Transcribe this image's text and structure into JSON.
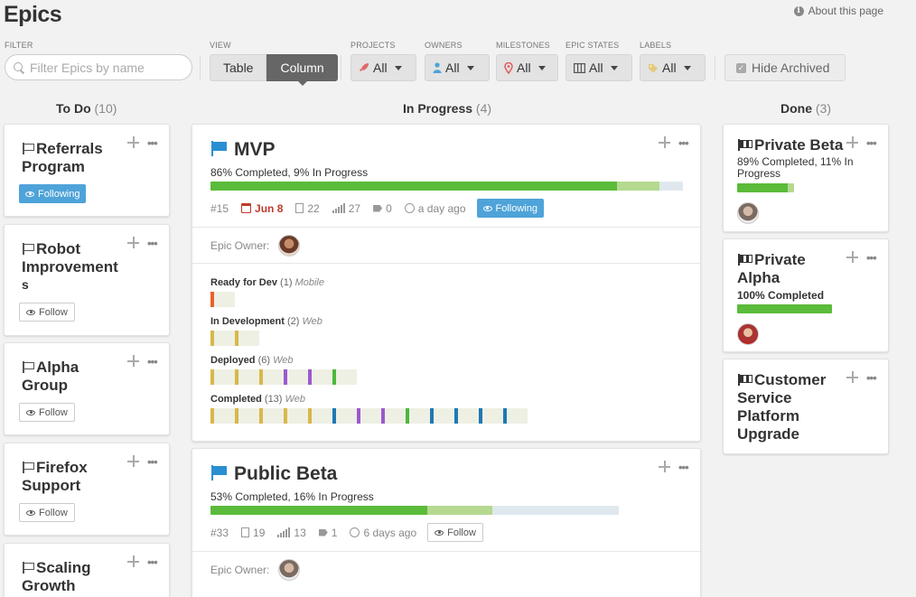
{
  "header": {
    "title": "Epics",
    "about_label": "About this page",
    "info_glyph": "i"
  },
  "filters": {
    "filter_label": "FILTER",
    "search_placeholder": "Filter Epics by name",
    "view_label": "VIEW",
    "view_options": [
      "Table",
      "Column"
    ],
    "view_selected": "Column",
    "projects": {
      "label": "PROJECTS",
      "value": "All",
      "icon": "rocket-icon"
    },
    "owners": {
      "label": "OWNERS",
      "value": "All",
      "icon": "person-icon"
    },
    "milestones": {
      "label": "MILESTONES",
      "value": "All",
      "icon": "map-pin-icon"
    },
    "epic_states": {
      "label": "EPIC STATES",
      "value": "All",
      "icon": "columns-icon"
    },
    "labels": {
      "label": "LABELS",
      "value": "All",
      "icon": "tag-icon"
    },
    "hide_archived": {
      "label": "Hide Archived",
      "checked": true,
      "check_glyph": "✓"
    }
  },
  "columns": {
    "todo": {
      "name": "To Do",
      "count": "(10)"
    },
    "in_progress": {
      "name": "In Progress",
      "count": "(4)"
    },
    "done": {
      "name": "Done",
      "count": "(3)"
    }
  },
  "todo_cards": [
    {
      "title_l1": "Referrals",
      "title_l2": "Program",
      "title_l3": "",
      "button": "Following"
    },
    {
      "title_l1": "Robot",
      "title_l2": "Improvement",
      "title_l3": "s",
      "button": "Follow"
    },
    {
      "title_l1": "Alpha",
      "title_l2": "Group",
      "title_l3": "",
      "button": "Follow"
    },
    {
      "title_l1": "Firefox",
      "title_l2": "Support",
      "title_l3": "",
      "button": "Follow"
    },
    {
      "title_l1": "Scaling",
      "title_l2": "Growth",
      "title_l3": "",
      "button": ""
    }
  ],
  "mvp": {
    "title": "MVP",
    "progress_text": "86% Completed, 9% In Progress",
    "completed_pct": 86,
    "in_progress_pct": 9,
    "id": "#15",
    "due": "Jun 8",
    "stories": "22",
    "points": "27",
    "labels": "0",
    "updated": "a day ago",
    "follow": "Following",
    "owner_label": "Epic Owner:",
    "states": [
      {
        "name": "Ready for Dev",
        "count": "(1)",
        "project": "Mobile",
        "colors": [
          "#e8612c"
        ]
      },
      {
        "name": "In Development",
        "count": "(2)",
        "project": "Web",
        "colors": [
          "#d7b84a",
          "#d7b84a"
        ]
      },
      {
        "name": "Deployed",
        "count": "(6)",
        "project": "Web",
        "colors": [
          "#d7b84a",
          "#d7b84a",
          "#d7b84a",
          "#9b59d0",
          "#9b59d0",
          "#4cb83c"
        ]
      },
      {
        "name": "Completed",
        "count": "(13)",
        "project": "Web",
        "colors": [
          "#d7b84a",
          "#d7b84a",
          "#d7b84a",
          "#d7b84a",
          "#d7b84a",
          "#1f78b4",
          "#9b59d0",
          "#9b59d0",
          "#4cb83c",
          "#1f78b4",
          "#1f78b4",
          "#1f78b4",
          "#1f78b4"
        ]
      }
    ]
  },
  "public_beta": {
    "title": "Public Beta",
    "progress_text": "53% Completed, 16% In Progress",
    "completed_pct": 53,
    "in_progress_pct": 16,
    "id": "#33",
    "stories": "19",
    "points": "13",
    "labels": "1",
    "updated": "6 days ago",
    "follow": "Follow",
    "owner_label": "Epic Owner:"
  },
  "done_cards": [
    {
      "title_l1": "Private Beta",
      "title_l2": "",
      "title_l3": "",
      "progress_l1": "89% Completed, 11% In",
      "progress_l2": "Progress",
      "completed_pct": 89,
      "in_progress_pct": 11
    },
    {
      "title_l1": "Private",
      "title_l2": "Alpha",
      "title_l3": "",
      "progress_l1": "100% Completed",
      "progress_l2": "",
      "completed_pct": 100,
      "in_progress_pct": 0
    },
    {
      "title_l1": "Customer",
      "title_l2": "Service",
      "title_l3": "Platform",
      "title_l4": "Upgrade"
    }
  ],
  "colors": {
    "accent": "#4ea3d9",
    "complete": "#5bbb3a",
    "in_progress": "#b5d98f",
    "due": "#c0392b"
  }
}
